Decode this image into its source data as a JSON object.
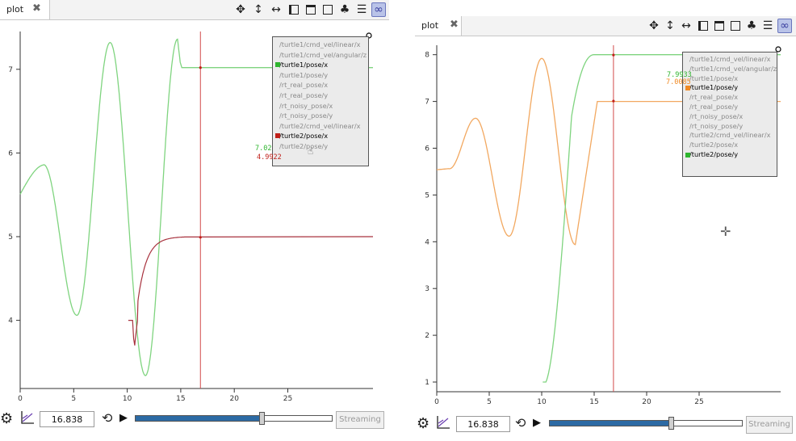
{
  "left": {
    "tab": {
      "label": "plot",
      "close": "✖"
    },
    "x_ticks": [
      "0",
      "5",
      "10",
      "15",
      "20",
      "25"
    ],
    "y_ticks": [
      "4",
      "5",
      "6",
      "7"
    ],
    "legend": [
      {
        "label": "/turtle1/cmd_vel/linear/x",
        "active": false
      },
      {
        "label": "/turtle1/cmd_vel/angular/z",
        "active": false
      },
      {
        "label": "/turtle1/pose/x",
        "active": true,
        "color": "#2fb52f"
      },
      {
        "label": "/turtle1/pose/y",
        "active": false
      },
      {
        "label": "/rt_real_pose/x",
        "active": false
      },
      {
        "label": "/rt_real_pose/y",
        "active": false
      },
      {
        "label": "/rt_noisy_pose/x",
        "active": false
      },
      {
        "label": "/rt_noisy_pose/y",
        "active": false
      },
      {
        "label": "/turtle2/cmd_vel/linear/x",
        "active": false
      },
      {
        "label": "/turtle2/pose/x",
        "active": true,
        "color": "#c0201a"
      },
      {
        "label": "/turtle2/pose/y",
        "active": false
      }
    ],
    "cursor_values": {
      "green": "7.02",
      "red": "4.9922"
    },
    "time_value": "16.838",
    "progress": 0.64,
    "streaming_label": "Streaming"
  },
  "right": {
    "tab": {
      "label": "plot",
      "close": "✖"
    },
    "x_ticks": [
      "0",
      "5",
      "10",
      "15",
      "20",
      "25"
    ],
    "y_ticks": [
      "1",
      "2",
      "3",
      "4",
      "5",
      "6",
      "7",
      "8"
    ],
    "legend": [
      {
        "label": "/turtle1/cmd_vel/linear/x",
        "active": false
      },
      {
        "label": "/turtle1/cmd_vel/angular/z",
        "active": false
      },
      {
        "label": "/turtle1/pose/x",
        "active": false
      },
      {
        "label": "/turtle1/pose/y",
        "active": true,
        "color": "#f08a24"
      },
      {
        "label": "/rt_real_pose/x",
        "active": false
      },
      {
        "label": "/rt_real_pose/y",
        "active": false
      },
      {
        "label": "/rt_noisy_pose/x",
        "active": false
      },
      {
        "label": "/rt_noisy_pose/y",
        "active": false
      },
      {
        "label": "/turtle2/cmd_vel/linear/x",
        "active": false
      },
      {
        "label": "/turtle2/pose/x",
        "active": false
      },
      {
        "label": "/turtle2/pose/y",
        "active": true,
        "color": "#2fb52f"
      }
    ],
    "cursor_values": {
      "green": "7.9933",
      "orange": "7.0085"
    },
    "time_value": "16.838",
    "progress": 0.63,
    "streaming_label": "Streaming"
  },
  "toolbar_icons": [
    "move-icon",
    "vertical-zoom-icon",
    "horizontal-zoom-icon",
    "split-horizontal-icon",
    "split-vertical-icon",
    "add-plot-icon",
    "clear-icon",
    "legend-icon",
    "link-icon"
  ],
  "colors": {
    "green": "#2fb52f",
    "red": "#c0201a",
    "orange": "#f08a24",
    "cursor": "#d24a4a",
    "fill": "#2c6aa4"
  }
}
